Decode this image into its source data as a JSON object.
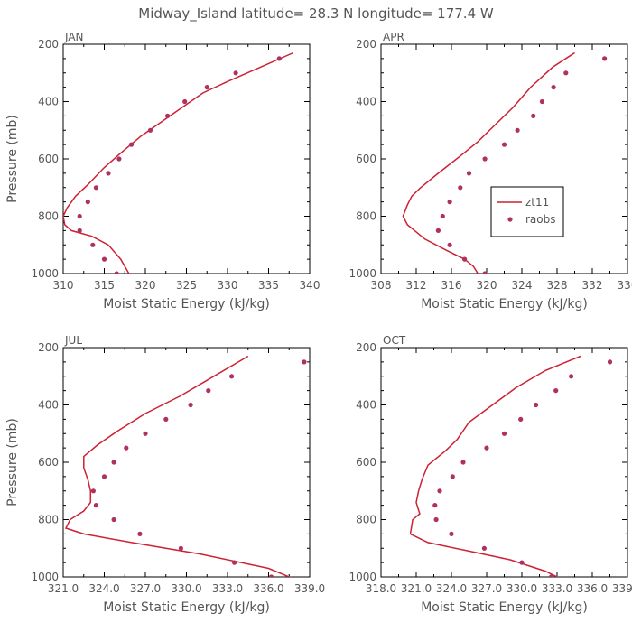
{
  "title": "Midway_Island  latitude= 28.3 N longitude= 177.4 W",
  "colors": {
    "model": "#cc2233",
    "obs": "#b03060",
    "axis": "#000000",
    "text": "#555555"
  },
  "legend": {
    "model_label": "zt11",
    "obs_label": "raobs",
    "placement": "right-middle of APR panel"
  },
  "chart_data": [
    {
      "type": "line+scatter",
      "panel": "JAN",
      "xlabel": "Moist Static Energy (kJ/kg)",
      "ylabel": "Pressure (mb)",
      "xlim": [
        310,
        340
      ],
      "xticks": [
        310,
        315,
        320,
        325,
        330,
        335,
        340
      ],
      "xtick_labels": [
        "310",
        "315",
        "320",
        "325",
        "330",
        "335",
        "340"
      ],
      "ylim": [
        1000,
        200
      ],
      "yticks": [
        200,
        400,
        600,
        800,
        1000
      ],
      "series": [
        {
          "name": "zt11",
          "kind": "line",
          "x": [
            338.0,
            334.0,
            330.0,
            327.0,
            324.5,
            321.5,
            319.5,
            317.0,
            315.0,
            313.0,
            311.5,
            310.5,
            310.0,
            310.2,
            311.0,
            313.5,
            315.5,
            317.0,
            318.0
          ],
          "y": [
            230,
            280,
            330,
            370,
            420,
            480,
            520,
            580,
            630,
            690,
            730,
            770,
            800,
            830,
            850,
            870,
            900,
            950,
            1000
          ]
        },
        {
          "name": "raobs",
          "kind": "scatter",
          "x": [
            336.3,
            331.0,
            327.5,
            324.8,
            322.7,
            320.6,
            318.3,
            316.8,
            315.5,
            314.0,
            313.0,
            312.0,
            312.0,
            313.6,
            315.0,
            316.5
          ],
          "y": [
            250,
            300,
            350,
            400,
            450,
            500,
            550,
            600,
            650,
            700,
            750,
            800,
            850,
            900,
            950,
            1000
          ]
        }
      ]
    },
    {
      "type": "line+scatter",
      "panel": "APR",
      "xlabel": "Moist Static Energy (kJ/kg)",
      "ylabel": "",
      "xlim": [
        308,
        336
      ],
      "xticks": [
        308,
        312,
        316,
        320,
        324,
        328,
        332,
        336
      ],
      "xtick_labels": [
        "308",
        "312",
        "316",
        "320",
        "324",
        "328",
        "332",
        "336"
      ],
      "ylim": [
        1000,
        200
      ],
      "yticks": [
        200,
        400,
        600,
        800,
        1000
      ],
      "series": [
        {
          "name": "zt11",
          "kind": "line",
          "x": [
            330.0,
            327.5,
            325.0,
            323.0,
            321.0,
            319.0,
            317.0,
            314.5,
            312.5,
            311.5,
            311.0,
            310.5,
            311.0,
            313.0,
            315.5,
            317.5,
            318.5,
            319.0
          ],
          "y": [
            230,
            280,
            350,
            420,
            480,
            540,
            590,
            650,
            700,
            730,
            760,
            800,
            830,
            880,
            920,
            950,
            975,
            1000
          ]
        },
        {
          "name": "raobs",
          "kind": "scatter",
          "x": [
            333.4,
            329.0,
            327.6,
            326.3,
            325.3,
            323.5,
            322.0,
            319.8,
            318.0,
            317.0,
            315.8,
            315.0,
            314.5,
            315.8,
            317.5,
            319.8
          ],
          "y": [
            250,
            300,
            350,
            400,
            450,
            500,
            550,
            600,
            650,
            700,
            750,
            800,
            850,
            900,
            950,
            1000
          ]
        }
      ]
    },
    {
      "type": "line+scatter",
      "panel": "JUL",
      "xlabel": "Moist Static Energy (kJ/kg)",
      "ylabel": "Pressure (mb)",
      "xlim": [
        321.0,
        339.0
      ],
      "xticks": [
        321.0,
        324.0,
        327.0,
        330.0,
        333.0,
        336.0,
        339.0
      ],
      "xtick_labels": [
        "321.0",
        "324.0",
        "327.0",
        "330.0",
        "333.0",
        "336.0",
        "339.0"
      ],
      "ylim": [
        1000,
        200
      ],
      "yticks": [
        200,
        400,
        600,
        800,
        1000
      ],
      "series": [
        {
          "name": "zt11",
          "kind": "line",
          "x": [
            334.5,
            332.0,
            329.5,
            327.0,
            325.0,
            323.5,
            322.5,
            322.5,
            322.8,
            323.0,
            323.0,
            322.5,
            321.5,
            321.2,
            322.5,
            326.0,
            331.0,
            336.0,
            338.5
          ],
          "y": [
            230,
            300,
            370,
            430,
            490,
            540,
            580,
            620,
            660,
            700,
            740,
            770,
            800,
            830,
            850,
            880,
            920,
            970,
            1020
          ]
        },
        {
          "name": "raobs",
          "kind": "scatter",
          "x": [
            338.6,
            333.3,
            331.6,
            330.3,
            328.5,
            327.0,
            325.6,
            324.7,
            324.0,
            323.2,
            323.4,
            324.7,
            326.6,
            329.6,
            333.5,
            336.2
          ],
          "y": [
            250,
            300,
            350,
            400,
            450,
            500,
            550,
            600,
            650,
            700,
            750,
            800,
            850,
            900,
            950,
            1000
          ]
        }
      ]
    },
    {
      "type": "line+scatter",
      "panel": "OCT",
      "xlabel": "Moist Static Energy (kJ/kg)",
      "ylabel": "",
      "xlim": [
        318.0,
        339.0
      ],
      "xticks": [
        318.0,
        321.0,
        324.0,
        327.0,
        330.0,
        333.0,
        336.0,
        339.0
      ],
      "xtick_labels": [
        "318.0",
        "321.0",
        "324.0",
        "327.0",
        "330.0",
        "333.0",
        "336.0",
        "339.0"
      ],
      "ylim": [
        1000,
        200
      ],
      "yticks": [
        200,
        400,
        600,
        800,
        1000
      ],
      "series": [
        {
          "name": "zt11",
          "kind": "line",
          "x": [
            335.0,
            332.0,
            329.5,
            327.5,
            325.5,
            324.5,
            323.5,
            322.0,
            321.5,
            321.2,
            321.0,
            321.3,
            320.7,
            320.5,
            322.0,
            325.5,
            329.0,
            332.0,
            333.5
          ],
          "y": [
            230,
            280,
            340,
            400,
            460,
            520,
            560,
            610,
            660,
            700,
            740,
            780,
            800,
            850,
            880,
            910,
            940,
            980,
            1010
          ]
        },
        {
          "name": "raobs",
          "kind": "scatter",
          "x": [
            337.5,
            334.2,
            332.9,
            331.2,
            329.9,
            328.5,
            327.0,
            325.0,
            324.1,
            323.0,
            322.6,
            322.7,
            324.0,
            326.8,
            330.0,
            332.5
          ],
          "y": [
            250,
            300,
            350,
            400,
            450,
            500,
            550,
            600,
            650,
            700,
            750,
            800,
            850,
            900,
            950,
            1000
          ]
        }
      ]
    }
  ]
}
